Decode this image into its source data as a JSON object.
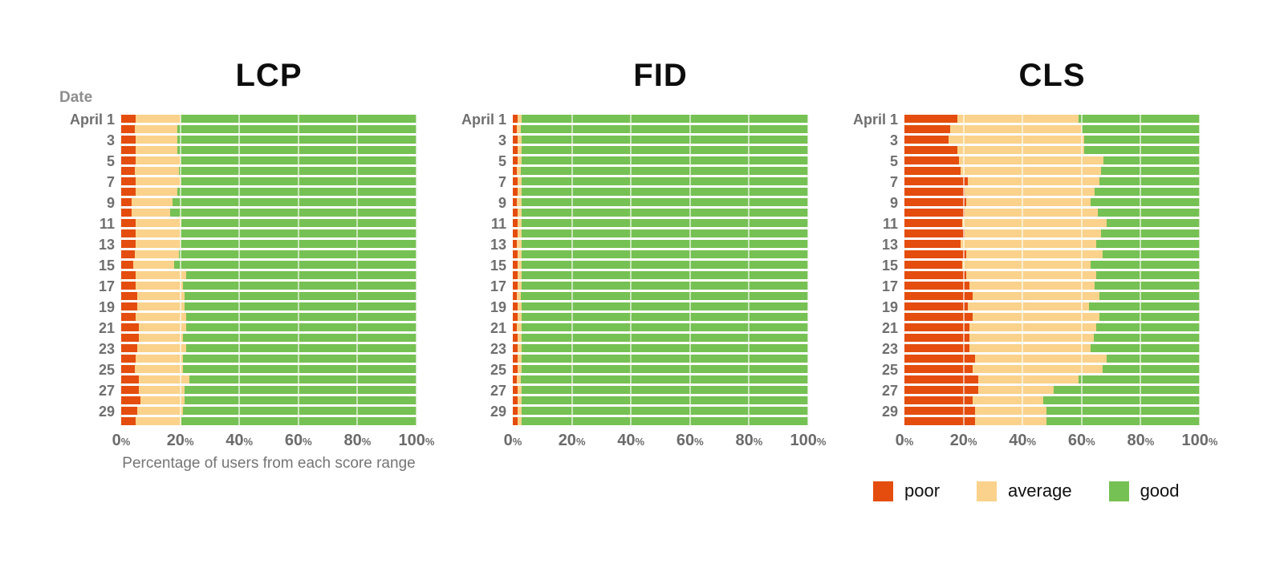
{
  "colors": {
    "poor": "#E44D0E",
    "average": "#FAD28B",
    "good": "#76C153",
    "axis_text": "#6f6f6f",
    "gridline": "#e2e2e2",
    "title_text": "#0d0d0d"
  },
  "legend": {
    "items": [
      {
        "label": "poor",
        "color": "#E44D0E"
      },
      {
        "label": "average",
        "color": "#FAD28B"
      },
      {
        "label": "good",
        "color": "#76C153"
      }
    ]
  },
  "chart_data": [
    {
      "type": "bar",
      "stacked": true,
      "horizontal": true,
      "title": "LCP",
      "x_axis": {
        "ticks": [
          "0%",
          "20%",
          "40%",
          "60%",
          "80%",
          "100%"
        ],
        "range": [
          0,
          100
        ],
        "label": "Percentage of users from each score range"
      },
      "y_axis": {
        "header": "Date",
        "tick_labels": [
          "April 1",
          "3",
          "5",
          "7",
          "9",
          "11",
          "13",
          "15",
          "17",
          "19",
          "21",
          "23",
          "25",
          "27",
          "29"
        ],
        "note": "30 bars, April 1-30, labels on odd days"
      },
      "series": [
        {
          "name": "poor",
          "color": "#E44D0E",
          "values": [
            5,
            4.5,
            5,
            5,
            5,
            4.5,
            5,
            5,
            3.5,
            3.5,
            5,
            5,
            5,
            4.5,
            4,
            5,
            5,
            5.5,
            5.5,
            5,
            6,
            6,
            5.5,
            5,
            4.5,
            6,
            6,
            6.5,
            5.5,
            5
          ]
        },
        {
          "name": "average",
          "color": "#FAD28B",
          "values": [
            15,
            14.5,
            14,
            14,
            15,
            15,
            15,
            14,
            14,
            13,
            15.5,
            15,
            15,
            15,
            14,
            17,
            16,
            16,
            16,
            17,
            16,
            15,
            16.5,
            16,
            16.5,
            17,
            15.5,
            15,
            15.5,
            15.5
          ]
        },
        {
          "name": "good",
          "color": "#76C153",
          "values": [
            80,
            81,
            81,
            81,
            80,
            80.5,
            80,
            81,
            82.5,
            83.5,
            79.5,
            80,
            80,
            80.5,
            82,
            78,
            79,
            78.5,
            78.5,
            78,
            78,
            79,
            78,
            79,
            79,
            77,
            78.5,
            78.5,
            79,
            79.5
          ]
        }
      ]
    },
    {
      "type": "bar",
      "stacked": true,
      "horizontal": true,
      "title": "FID",
      "x_axis": {
        "ticks": [
          "0%",
          "20%",
          "40%",
          "60%",
          "80%",
          "100%"
        ],
        "range": [
          0,
          100
        ]
      },
      "y_axis": {
        "tick_labels": [
          "April 1",
          "3",
          "5",
          "7",
          "9",
          "11",
          "13",
          "15",
          "17",
          "19",
          "21",
          "23",
          "25",
          "27",
          "29"
        ],
        "note": "30 bars, April 1-30, labels on odd days"
      },
      "series": [
        {
          "name": "poor",
          "color": "#E44D0E",
          "values": [
            1.5,
            1.4,
            1.5,
            1.6,
            1.5,
            1.4,
            1.5,
            1.5,
            1.4,
            1.5,
            1.6,
            1.5,
            1.4,
            1.5,
            1.5,
            1.6,
            1.5,
            1.4,
            1.5,
            1.5,
            1.4,
            1.5,
            1.6,
            1.5,
            1.5,
            1.4,
            1.5,
            1.6,
            1.5,
            1.5
          ]
        },
        {
          "name": "average",
          "color": "#FAD28B",
          "values": [
            1.5,
            1.4,
            1.5,
            1.5,
            1.6,
            1.4,
            1.5,
            1.5,
            1.5,
            1.4,
            1.5,
            1.6,
            1.5,
            1.4,
            1.5,
            1.5,
            1.6,
            1.4,
            1.5,
            1.5,
            1.5,
            1.4,
            1.5,
            1.6,
            1.5,
            1.4,
            1.5,
            1.5,
            1.6,
            1.5
          ]
        },
        {
          "name": "good",
          "color": "#76C153",
          "values": [
            97,
            97.2,
            97,
            96.9,
            96.9,
            97.2,
            97,
            97,
            97.1,
            97.1,
            96.9,
            96.9,
            97.1,
            97.1,
            97,
            96.9,
            96.9,
            97.2,
            97,
            97,
            97.1,
            97.1,
            96.9,
            96.9,
            97,
            97.2,
            97,
            96.9,
            96.9,
            97
          ]
        }
      ]
    },
    {
      "type": "bar",
      "stacked": true,
      "horizontal": true,
      "title": "CLS",
      "x_axis": {
        "ticks": [
          "0%",
          "20%",
          "40%",
          "60%",
          "80%",
          "100%"
        ],
        "range": [
          0,
          100
        ]
      },
      "y_axis": {
        "tick_labels": [
          "April 1",
          "3",
          "5",
          "7",
          "9",
          "11",
          "13",
          "15",
          "17",
          "19",
          "21",
          "23",
          "25",
          "27",
          "29"
        ],
        "note": "30 bars, April 1-30, labels on odd days"
      },
      "series": [
        {
          "name": "poor",
          "color": "#E44D0E",
          "values": [
            18,
            15.5,
            15,
            18,
            18.5,
            19,
            21.5,
            20.5,
            21,
            20.5,
            19.5,
            20.5,
            19,
            21,
            19.5,
            21,
            22,
            23,
            21.5,
            23,
            22,
            22,
            22,
            24,
            23,
            25,
            25,
            23,
            24,
            24
          ]
        },
        {
          "name": "average",
          "color": "#FAD28B",
          "values": [
            41,
            44.5,
            46,
            43,
            49,
            47.5,
            44.5,
            44,
            42,
            45,
            49,
            46,
            46,
            46,
            43.5,
            44,
            42.5,
            43,
            41,
            43,
            43,
            42,
            41,
            44.5,
            44,
            34,
            25.5,
            24,
            24,
            24
          ]
        },
        {
          "name": "good",
          "color": "#76C153",
          "values": [
            41,
            40,
            39,
            39,
            32.5,
            33.5,
            34,
            35.5,
            37,
            34.5,
            31.5,
            33.5,
            35,
            33,
            37,
            35,
            35.5,
            34,
            37.5,
            34,
            35,
            36,
            37,
            31.5,
            33,
            41,
            49.5,
            53,
            52,
            52
          ]
        }
      ]
    }
  ]
}
